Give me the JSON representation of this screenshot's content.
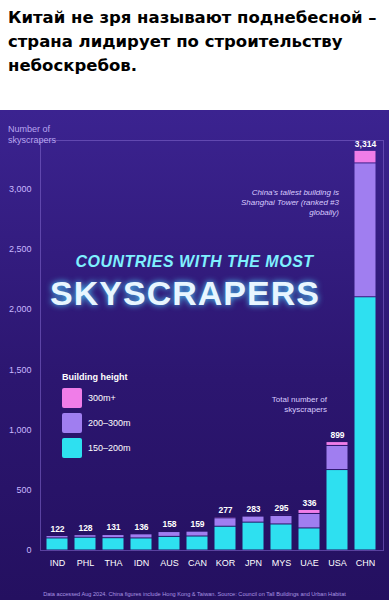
{
  "chart_data": {
    "type": "bar",
    "heading": "Китай не зря называют поднебесной – страна лидирует по строительству небоскребов.",
    "supertitle": "COUNTRIES WITH THE MOST",
    "title": "SKYSCRAPERS",
    "ylabel": "Number of skyscrapers",
    "legend_title": "Building height",
    "annotations": [
      "China's tallest building is Shanghai Tower (ranked #3 globally)",
      "Total number of skyscrapers"
    ],
    "source": "Data accessed Aug 2024. China figures include Hong Kong & Taiwan. Source: Council on Tall Buildings and Urban Habitat",
    "categories": [
      "IND",
      "PHL",
      "THA",
      "IDN",
      "AUS",
      "CAN",
      "KOR",
      "JPN",
      "MYS",
      "UAE",
      "USA",
      "CHN"
    ],
    "series": [
      {
        "name": "300m+",
        "color": "#f07de8",
        "values": [
          2,
          1,
          3,
          2,
          5,
          3,
          10,
          2,
          9,
          33,
          32,
          104
        ]
      },
      {
        "name": "200–300m",
        "color": "#a07ef0",
        "values": [
          20,
          21,
          26,
          34,
          40,
          40,
          70,
          50,
          70,
          120,
          200,
          1110
        ]
      },
      {
        "name": "150–200m",
        "color": "#2ee0f0",
        "values": [
          100,
          106,
          102,
          100,
          113,
          116,
          197,
          231,
          216,
          183,
          667,
          2100
        ]
      }
    ],
    "totals": [
      122,
      128,
      131,
      136,
      158,
      159,
      277,
      283,
      295,
      336,
      899,
      3314
    ],
    "total_labels": [
      "122",
      "128",
      "131",
      "136",
      "158",
      "159",
      "277",
      "283",
      "295",
      "336",
      "899",
      "3,314"
    ],
    "ylim": [
      0,
      3400
    ],
    "yticks": [
      0,
      500,
      {
        "value": 1000,
        "label": "1,000"
      },
      {
        "value": 1500,
        "label": "1,500"
      },
      {
        "value": 2000,
        "label": "2,000"
      },
      {
        "value": 2500,
        "label": "2,500"
      },
      {
        "value": 3000,
        "label": "3,000"
      }
    ],
    "stacked": true,
    "grid": false,
    "legend": "left"
  }
}
